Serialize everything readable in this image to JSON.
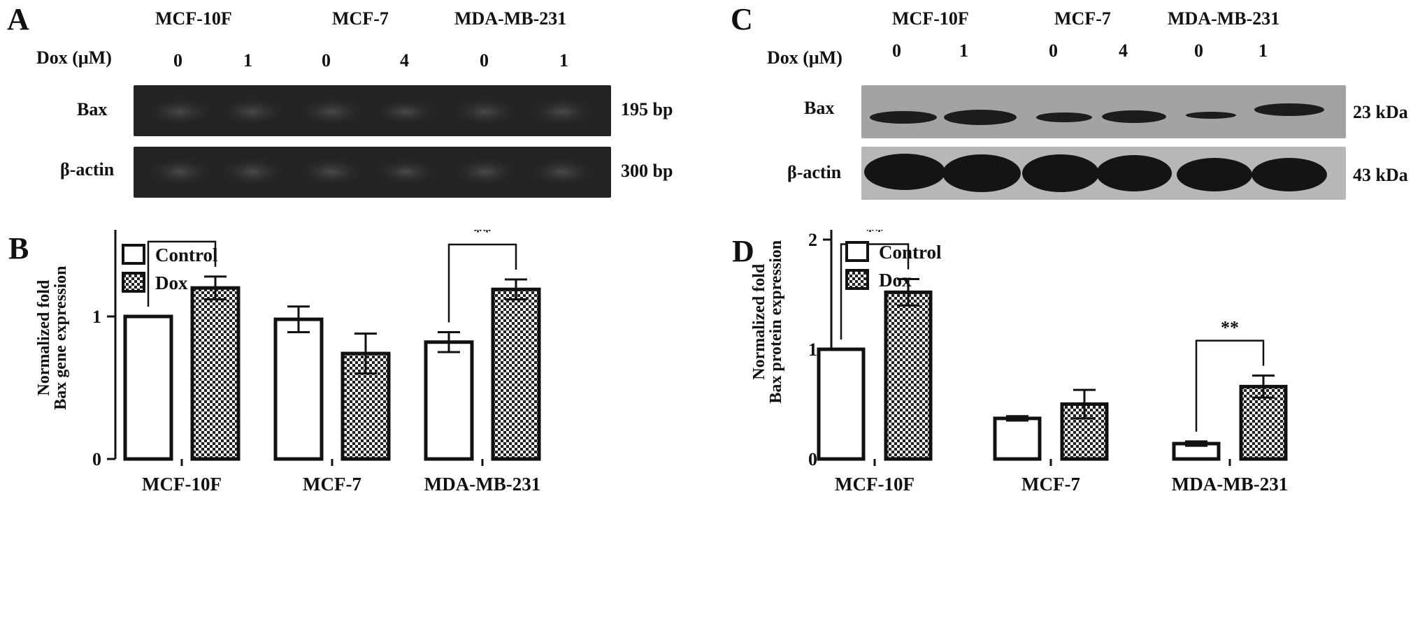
{
  "panels": {
    "A": {
      "letter": "A",
      "cell_lines": [
        "MCF-10F",
        "MCF-7",
        "MDA-MB-231"
      ],
      "dose_label": "Dox (μM)",
      "doses": [
        "0",
        "1",
        "0",
        "4",
        "0",
        "1"
      ],
      "rows": [
        {
          "name": "Bax",
          "size": "195 bp"
        },
        {
          "name": "β-actin",
          "size": "300 bp"
        }
      ]
    },
    "C": {
      "letter": "C",
      "cell_lines": [
        "MCF-10F",
        "MCF-7",
        "MDA-MB-231"
      ],
      "dose_label": "Dox (μM)",
      "doses": [
        "0",
        "1",
        "0",
        "4",
        "0",
        "1"
      ],
      "rows": [
        {
          "name": "Bax",
          "size": "23 kDa"
        },
        {
          "name": "β-actin",
          "size": "43 kDa"
        }
      ]
    },
    "B": {
      "letter": "B"
    },
    "D": {
      "letter": "D"
    }
  },
  "colors": {
    "ink": "#111111",
    "gel_bg": "#232323",
    "blot_bg": "#a3a3a3"
  },
  "chart_data": [
    {
      "id": "B",
      "type": "bar",
      "categories": [
        "MCF-10F",
        "MCF-7",
        "MDA-MB-231"
      ],
      "series": [
        {
          "name": "Control",
          "values": [
            1.0,
            0.98,
            0.82
          ],
          "errors": [
            0,
            0.09,
            0.07
          ],
          "pattern": "open"
        },
        {
          "name": "Dox",
          "values": [
            1.2,
            0.74,
            1.19
          ],
          "errors": [
            0.08,
            0.14,
            0.07
          ],
          "pattern": "checker"
        }
      ],
      "ylabel": "Normalized fold\nBax gene expression",
      "yticks": [
        "0",
        "1"
      ],
      "ylim": [
        0,
        1.7
      ],
      "significance": [
        {
          "category": "MCF-10F",
          "mark": "*"
        },
        {
          "category": "MDA-MB-231",
          "mark": "**"
        }
      ],
      "legend": "top-left"
    },
    {
      "id": "D",
      "type": "bar",
      "categories": [
        "MCF-10F",
        "MCF-7",
        "MDA-MB-231"
      ],
      "series": [
        {
          "name": "Control",
          "values": [
            1.0,
            0.37,
            0.14
          ],
          "errors": [
            0,
            0.02,
            0.02
          ],
          "pattern": "open"
        },
        {
          "name": "Dox",
          "values": [
            1.52,
            0.5,
            0.66
          ],
          "errors": [
            0.12,
            0.13,
            0.1
          ],
          "pattern": "checker"
        }
      ],
      "ylabel": "Normalized fold\nBax protein expression",
      "yticks": [
        "0",
        "1",
        "2"
      ],
      "ylim": [
        0,
        2.5
      ],
      "significance": [
        {
          "category": "MCF-10F",
          "mark": "**"
        },
        {
          "category": "MDA-MB-231",
          "mark": "**"
        }
      ],
      "legend": "top-left"
    }
  ]
}
